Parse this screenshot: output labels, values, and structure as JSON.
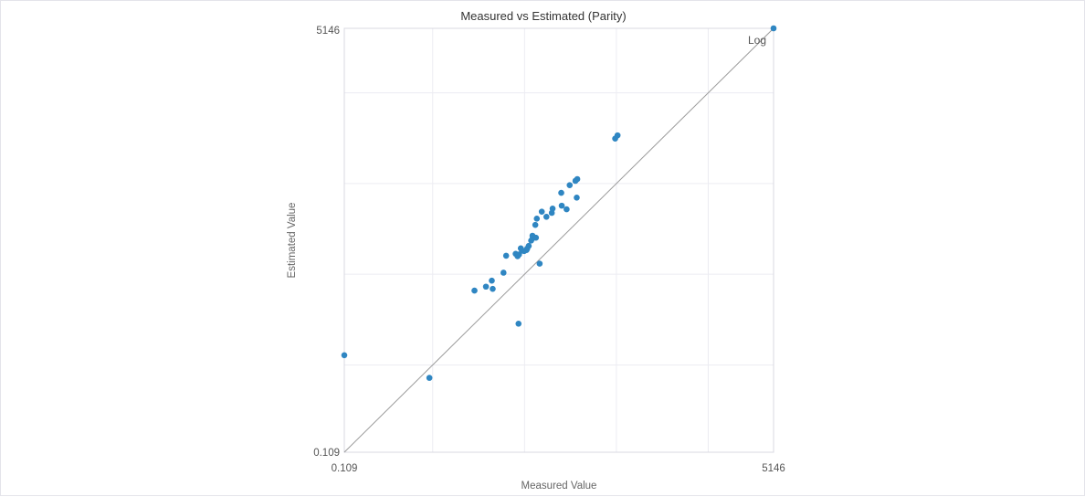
{
  "chart_data": {
    "type": "scatter",
    "title": "Measured vs Estimated (Parity)",
    "xlabel": "Measured Value",
    "ylabel": "Estimated Value",
    "scale": "log",
    "scale_note": "Log",
    "xlim": [
      0.109,
      5146
    ],
    "ylim": [
      0.109,
      5146
    ],
    "x_tick_labels": [
      "0.109",
      "5146"
    ],
    "y_tick_labels": [
      "0.109",
      "5146"
    ],
    "reference_line": "y = x",
    "grid": true,
    "legend": "none",
    "point_color": "#2f86c2",
    "points": [
      {
        "x": 0.109,
        "y": 1.28
      },
      {
        "x": 0.92,
        "y": 0.72
      },
      {
        "x": 2.85,
        "y": 6.6
      },
      {
        "x": 3.8,
        "y": 7.3
      },
      {
        "x": 4.5,
        "y": 6.9
      },
      {
        "x": 4.4,
        "y": 8.5
      },
      {
        "x": 5.9,
        "y": 10.4
      },
      {
        "x": 6.3,
        "y": 16.0
      },
      {
        "x": 8.0,
        "y": 16.8
      },
      {
        "x": 8.4,
        "y": 15.8
      },
      {
        "x": 8.7,
        "y": 16.5
      },
      {
        "x": 8.6,
        "y": 2.85
      },
      {
        "x": 9.1,
        "y": 19.3
      },
      {
        "x": 9.4,
        "y": 18.2
      },
      {
        "x": 9.9,
        "y": 18.0
      },
      {
        "x": 10.5,
        "y": 18.5
      },
      {
        "x": 10.7,
        "y": 19.2
      },
      {
        "x": 11.1,
        "y": 20.5
      },
      {
        "x": 11.8,
        "y": 23.5
      },
      {
        "x": 12.3,
        "y": 25.0
      },
      {
        "x": 12.2,
        "y": 26.6
      },
      {
        "x": 13.1,
        "y": 35.0
      },
      {
        "x": 13.3,
        "y": 25.3
      },
      {
        "x": 13.6,
        "y": 41.0
      },
      {
        "x": 14.6,
        "y": 13.1
      },
      {
        "x": 15.4,
        "y": 49.0
      },
      {
        "x": 17.3,
        "y": 43.0
      },
      {
        "x": 19.8,
        "y": 47.5
      },
      {
        "x": 20.2,
        "y": 53.0
      },
      {
        "x": 25.4,
        "y": 57.0
      },
      {
        "x": 25.1,
        "y": 79.0
      },
      {
        "x": 28.7,
        "y": 52.0
      },
      {
        "x": 31.0,
        "y": 96.0
      },
      {
        "x": 35.8,
        "y": 107.0
      },
      {
        "x": 37.5,
        "y": 112.0
      },
      {
        "x": 37.0,
        "y": 70.0
      },
      {
        "x": 97.0,
        "y": 313.0
      },
      {
        "x": 103.0,
        "y": 340.0
      },
      {
        "x": 5146.0,
        "y": 5146.0
      }
    ]
  }
}
